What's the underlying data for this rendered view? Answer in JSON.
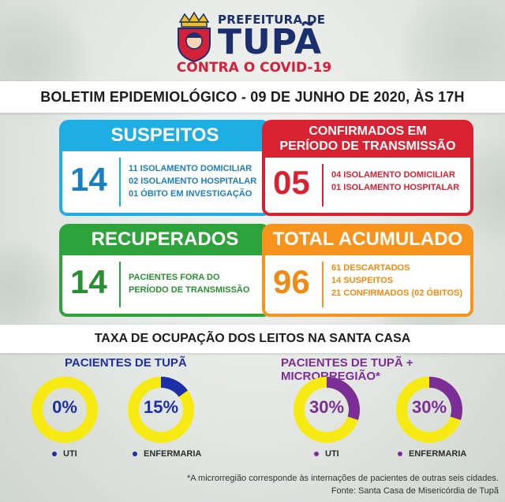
{
  "header": {
    "prefeitura": "PREFEITURA DE",
    "city": "TUPÃ",
    "campaign": "CONTRA O COVID-19"
  },
  "bulletin": "BOLETIM EPIDEMIOLÓGICO - 09 DE JUNHO DE 2020, ÀS 17H",
  "cards": {
    "suspeitos": {
      "title": "SUSPEITOS",
      "number": "14",
      "lines": [
        "11 ISOLAMENTO DOMICILIAR",
        "02 ISOLAMENTO HOSPITALAR",
        "01 ÓBITO EM INVESTIGAÇÃO"
      ]
    },
    "confirmados": {
      "title_line1": "CONFIRMADOS EM",
      "title_line2": "PERÍODO DE TRANSMISSÃO",
      "number": "05",
      "lines": [
        "04 ISOLAMENTO DOMICILIAR",
        "01 ISOLAMENTO HOSPITALAR"
      ]
    },
    "recuperados": {
      "title": "RECUPERADOS",
      "number": "14",
      "lines": [
        "PACIENTES FORA DO",
        "PERÍODO DE TRANSMISSÃO"
      ]
    },
    "total": {
      "title": "TOTAL ACUMULADO",
      "number": "96",
      "lines": [
        "61 DESCARTADOS",
        "14 SUSPEITOS",
        "21 CONFIRMADOS (02 ÓBITOS)"
      ]
    }
  },
  "occupancy": {
    "title": "TAXA DE OCUPAÇÃO DOS LEITOS NA SANTA CASA",
    "groups": [
      {
        "title": "PACIENTES DE TUPÃ",
        "color": "#1c2fa6",
        "items": [
          {
            "label": "UTI",
            "value_text": "0%",
            "value": 0
          },
          {
            "label": "ENFERMARIA",
            "value_text": "15%",
            "value": 15
          }
        ]
      },
      {
        "title": "PACIENTES DE TUPÃ + MICRORREGIÃO*",
        "color": "#7b2f96",
        "items": [
          {
            "label": "UTI",
            "value_text": "30%",
            "value": 30
          },
          {
            "label": "ENFERMARIA",
            "value_text": "30%",
            "value": 30
          }
        ]
      }
    ],
    "ring_color": "#f7ea12"
  },
  "footnotes": [
    "*A microrregião corresponde às internações de pacientes de outras seis cidades.",
    "Fonte: Santa Casa de Misericórdia de Tupã"
  ]
}
